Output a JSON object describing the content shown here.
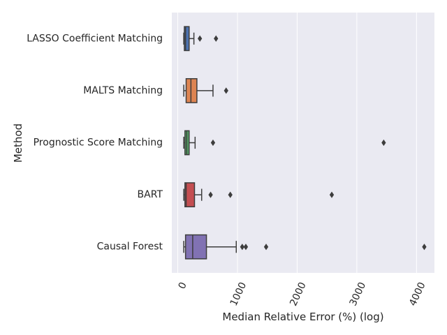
{
  "chart_data": {
    "type": "boxplot",
    "orientation": "horizontal",
    "xlabel": "Median Relative Error (%) (log)",
    "ylabel": "Method",
    "xlim": [
      -100,
      4300
    ],
    "xticks": [
      0,
      1000,
      2000,
      3000,
      4000
    ],
    "x_tick_labels": [
      "0",
      "1000",
      "2000",
      "3000",
      "4000"
    ],
    "grid": true,
    "categories": [
      "LASSO Coefficient Matching",
      "MALTS Matching",
      "Prognostic Score Matching",
      "BART",
      "Causal Forest"
    ],
    "series": [
      {
        "whisker_low": 100,
        "q1": 110,
        "median": 130,
        "q3": 190,
        "whisker_high": 270,
        "outliers": [
          370,
          640
        ],
        "color": "#4c72b0"
      },
      {
        "whisker_low": 100,
        "q1": 140,
        "median": 220,
        "q3": 320,
        "whisker_high": 590,
        "outliers": [
          810
        ],
        "color": "#dd8452"
      },
      {
        "whisker_low": 100,
        "q1": 120,
        "median": 150,
        "q3": 190,
        "whisker_high": 290,
        "outliers": [
          590,
          3450
        ],
        "color": "#55a868"
      },
      {
        "whisker_low": 100,
        "q1": 120,
        "median": 140,
        "q3": 280,
        "whisker_high": 400,
        "outliers": [
          550,
          880,
          2580
        ],
        "color": "#c44e52"
      },
      {
        "whisker_low": 100,
        "q1": 130,
        "median": 250,
        "q3": 480,
        "whisker_high": 980,
        "outliers": [
          1080,
          1140,
          1480,
          4130
        ],
        "color": "#8172b3"
      }
    ],
    "colors": {
      "plot_background": "#eaeaf2",
      "grid": "#ffffff",
      "line": "#3d3d3d",
      "text": "#262626"
    }
  }
}
